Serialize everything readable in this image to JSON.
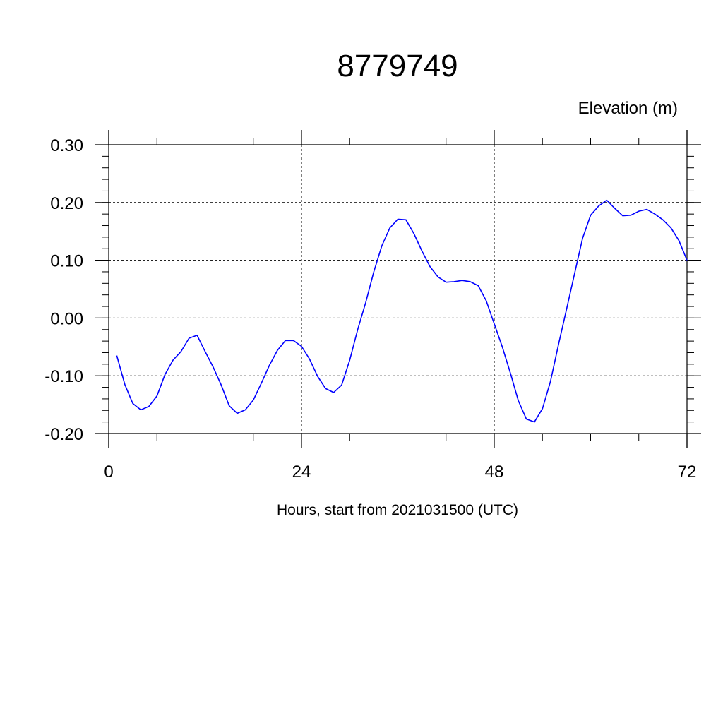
{
  "chart_data": {
    "type": "line",
    "title": "8779749",
    "ylabel": "Elevation (m)",
    "xlabel": "Hours, start from 2021031500 (UTC)",
    "xlim": [
      0,
      72
    ],
    "ylim": [
      -0.2,
      0.3
    ],
    "x_ticks": [
      0,
      24,
      48,
      72
    ],
    "x_tick_labels": [
      "0",
      "24",
      "48",
      "72"
    ],
    "y_ticks": [
      -0.2,
      -0.1,
      0.0,
      0.1,
      0.2,
      0.3
    ],
    "y_tick_labels": [
      "-0.20",
      "-0.10",
      "0.00",
      "0.10",
      "0.20",
      "0.30"
    ],
    "grid": true,
    "line_color": "#0000ff",
    "series": [
      {
        "x": [
          1,
          2,
          3,
          4,
          5,
          6,
          7,
          8,
          9,
          10,
          11,
          12,
          13,
          14,
          15,
          16,
          17,
          18,
          19,
          20,
          21,
          22,
          23,
          24,
          25,
          26,
          27,
          28,
          29,
          30,
          31,
          32,
          33,
          34,
          35,
          36,
          37,
          38,
          39,
          40,
          41,
          42,
          43,
          44,
          45,
          46,
          47,
          48,
          49,
          50,
          51,
          52,
          53,
          54,
          55,
          56,
          57,
          58,
          59,
          60,
          61,
          62,
          63,
          64,
          65,
          66,
          67,
          68,
          69,
          70,
          71,
          72
        ],
        "values": [
          -0.065,
          -0.115,
          -0.148,
          -0.159,
          -0.153,
          -0.135,
          -0.098,
          -0.073,
          -0.058,
          -0.035,
          -0.03,
          -0.058,
          -0.085,
          -0.116,
          -0.152,
          -0.165,
          -0.159,
          -0.142,
          -0.113,
          -0.082,
          -0.056,
          -0.039,
          -0.039,
          -0.049,
          -0.071,
          -0.101,
          -0.122,
          -0.129,
          -0.116,
          -0.073,
          -0.02,
          0.027,
          0.08,
          0.125,
          0.156,
          0.171,
          0.17,
          0.146,
          0.116,
          0.089,
          0.071,
          0.062,
          0.063,
          0.065,
          0.063,
          0.056,
          0.03,
          -0.01,
          -0.05,
          -0.095,
          -0.143,
          -0.175,
          -0.18,
          -0.157,
          -0.11,
          -0.046,
          0.015,
          0.077,
          0.138,
          0.178,
          0.194,
          0.204,
          0.19,
          0.177,
          0.178,
          0.185,
          0.188,
          0.18,
          0.17,
          0.156,
          0.134,
          0.1
        ]
      }
    ]
  }
}
